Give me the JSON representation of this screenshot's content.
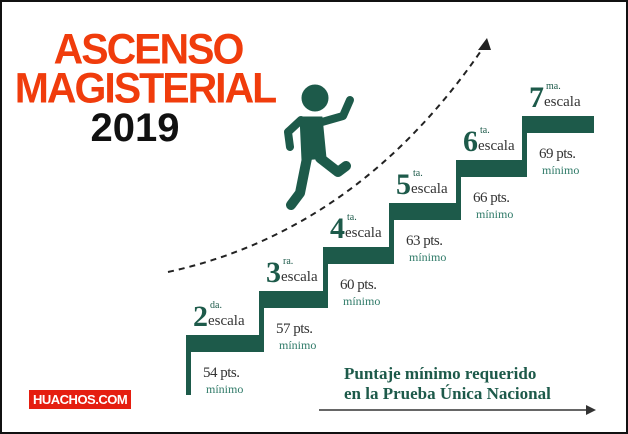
{
  "title": {
    "line1": "ASCENSO",
    "line2": "MAGISTERIAL",
    "year": "2019"
  },
  "steps": [
    {
      "number": "2",
      "ordinal": "da.",
      "word": "escala",
      "points": "54 pts.",
      "note": "mínimo"
    },
    {
      "number": "3",
      "ordinal": "ra.",
      "word": "escala",
      "points": "57 pts.",
      "note": "mínimo"
    },
    {
      "number": "4",
      "ordinal": "ta.",
      "word": "escala",
      "points": "60 pts.",
      "note": "mínimo"
    },
    {
      "number": "5",
      "ordinal": "ta.",
      "word": "escala",
      "points": "63 pts.",
      "note": "mínimo"
    },
    {
      "number": "6",
      "ordinal": "ta.",
      "word": "escala",
      "points": "66 pts.",
      "note": "mínimo"
    },
    {
      "number": "7",
      "ordinal": "ma.",
      "word": "escala",
      "points": "69 pts.",
      "note": "mínimo"
    }
  ],
  "caption": {
    "line1": "Puntaje mínimo requerido",
    "line2": "en la Prueba Única Nacional"
  },
  "logo": "HUACHOS.COM",
  "colors": {
    "green": "#1d5a4a",
    "red": "#f03c0c"
  }
}
